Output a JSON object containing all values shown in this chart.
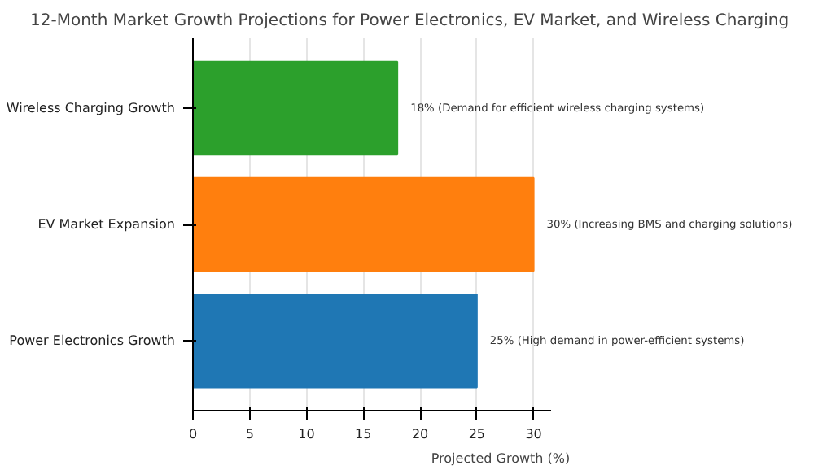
{
  "chart_data": {
    "type": "bar",
    "orientation": "horizontal",
    "title": "12-Month Market Growth Projections for Power Electronics, EV Market, and Wireless Charging",
    "xlabel": "Projected Growth (%)",
    "categories": [
      "Wireless Charging Growth",
      "EV Market Expansion",
      "Power Electronics Growth"
    ],
    "values": [
      18,
      30,
      25
    ],
    "colors": [
      "#2ca02c",
      "#ff7f0e",
      "#1f77b4"
    ],
    "value_labels": [
      "18% (Demand for efficient wireless charging systems)",
      "30% (Increasing BMS and charging solutions)",
      "25% (High demand in power-efficient systems)"
    ],
    "xlim": [
      0,
      31.5
    ],
    "xticks": [
      0,
      5,
      10,
      15,
      20,
      25,
      30
    ],
    "grid": "x"
  }
}
